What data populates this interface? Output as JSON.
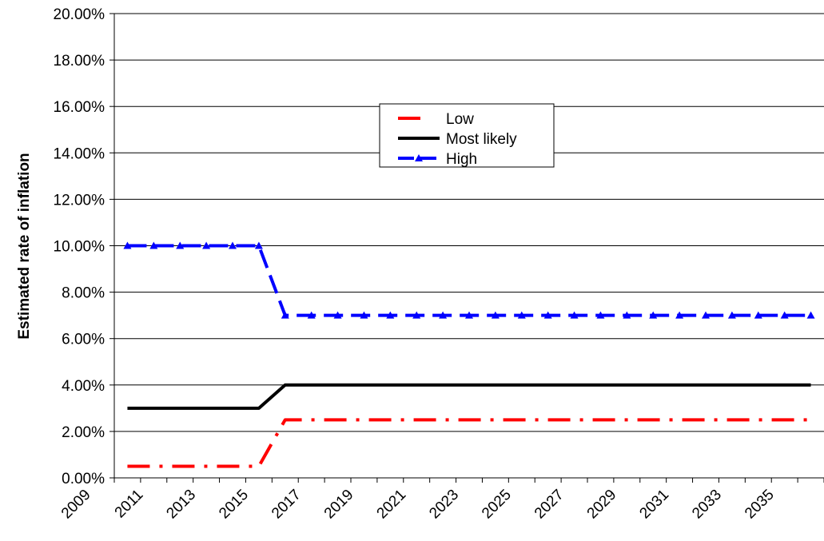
{
  "chart_data": {
    "type": "line",
    "ylabel": "Estimated rate of inflation",
    "xlabel": "",
    "ylim": [
      0,
      20
    ],
    "y_tick_labels": [
      "0.00%",
      "2.00%",
      "4.00%",
      "6.00%",
      "8.00%",
      "10.00%",
      "12.00%",
      "14.00%",
      "16.00%",
      "18.00%",
      "20.00%"
    ],
    "x_tick_labels": [
      "2009",
      "2011",
      "2013",
      "2015",
      "2017",
      "2019",
      "2021",
      "2023",
      "2025",
      "2027",
      "2029",
      "2031",
      "2033",
      "2035"
    ],
    "x": [
      2010,
      2011,
      2012,
      2013,
      2014,
      2015,
      2016,
      2017,
      2018,
      2019,
      2020,
      2021,
      2022,
      2023,
      2024,
      2025,
      2026,
      2027,
      2028,
      2029,
      2030,
      2031,
      2032,
      2033,
      2034,
      2035,
      2036
    ],
    "grid": "horizontal",
    "legend_position": "top-center",
    "series": [
      {
        "name": "Low",
        "color": "#ff0000",
        "style": "dash-dot",
        "values": [
          0.5,
          0.5,
          0.5,
          0.5,
          0.5,
          0.5,
          2.5,
          2.5,
          2.5,
          2.5,
          2.5,
          2.5,
          2.5,
          2.5,
          2.5,
          2.5,
          2.5,
          2.5,
          2.5,
          2.5,
          2.5,
          2.5,
          2.5,
          2.5,
          2.5,
          2.5,
          2.5
        ]
      },
      {
        "name": "Most likely",
        "color": "#000000",
        "style": "solid",
        "values": [
          3,
          3,
          3,
          3,
          3,
          3,
          4,
          4,
          4,
          4,
          4,
          4,
          4,
          4,
          4,
          4,
          4,
          4,
          4,
          4,
          4,
          4,
          4,
          4,
          4,
          4,
          4
        ]
      },
      {
        "name": "High",
        "color": "#0000ff",
        "style": "dash-triangle",
        "values": [
          10,
          10,
          10,
          10,
          10,
          10,
          7,
          7,
          7,
          7,
          7,
          7,
          7,
          7,
          7,
          7,
          7,
          7,
          7,
          7,
          7,
          7,
          7,
          7,
          7,
          7,
          7
        ]
      }
    ]
  }
}
